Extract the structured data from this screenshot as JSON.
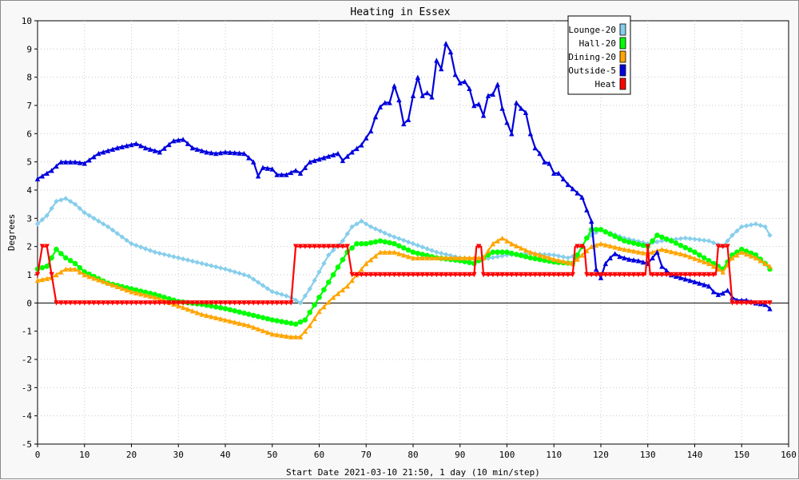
{
  "chart_data": {
    "type": "line",
    "title": "Heating in Essex",
    "xlabel": "Start Date 2021-03-10 21:50, 1 day (10 min/step)",
    "ylabel": "Degrees",
    "xlim": [
      0,
      160
    ],
    "ylim": [
      -5,
      10
    ],
    "x_ticks": [
      0,
      10,
      20,
      30,
      40,
      50,
      60,
      70,
      80,
      90,
      100,
      110,
      120,
      130,
      140,
      150,
      160
    ],
    "y_ticks": [
      -5,
      -4,
      -3,
      -2,
      -1,
      0,
      1,
      2,
      3,
      4,
      5,
      6,
      7,
      8,
      9,
      10
    ],
    "grid": true,
    "legend_position": "top-right",
    "series": [
      {
        "name": "Lounge-20",
        "color": "#87ceeb",
        "marker": "diamond",
        "anchors": [
          [
            0,
            2.8
          ],
          [
            2,
            3.1
          ],
          [
            4,
            3.6
          ],
          [
            6,
            3.7
          ],
          [
            8,
            3.5
          ],
          [
            10,
            3.2
          ],
          [
            15,
            2.7
          ],
          [
            20,
            2.1
          ],
          [
            25,
            1.8
          ],
          [
            30,
            1.6
          ],
          [
            35,
            1.4
          ],
          [
            40,
            1.2
          ],
          [
            45,
            0.95
          ],
          [
            50,
            0.4
          ],
          [
            54,
            0.2
          ],
          [
            56,
            0.0
          ],
          [
            58,
            0.5
          ],
          [
            60,
            1.1
          ],
          [
            62,
            1.7
          ],
          [
            65,
            2.2
          ],
          [
            67,
            2.7
          ],
          [
            69,
            2.9
          ],
          [
            71,
            2.7
          ],
          [
            75,
            2.4
          ],
          [
            80,
            2.1
          ],
          [
            85,
            1.8
          ],
          [
            90,
            1.6
          ],
          [
            95,
            1.55
          ],
          [
            100,
            1.7
          ],
          [
            105,
            1.75
          ],
          [
            110,
            1.7
          ],
          [
            113,
            1.6
          ],
          [
            115,
            1.7
          ],
          [
            117,
            2.3
          ],
          [
            120,
            2.6
          ],
          [
            125,
            2.3
          ],
          [
            130,
            2.1
          ],
          [
            133,
            2.2
          ],
          [
            138,
            2.3
          ],
          [
            143,
            2.2
          ],
          [
            146,
            2.0
          ],
          [
            148,
            2.4
          ],
          [
            150,
            2.7
          ],
          [
            153,
            2.8
          ],
          [
            155,
            2.7
          ],
          [
            156,
            2.4
          ]
        ]
      },
      {
        "name": "Hall-20",
        "color": "#00ff00",
        "marker": "circle",
        "anchors": [
          [
            0,
            1.2
          ],
          [
            2,
            1.3
          ],
          [
            4,
            1.9
          ],
          [
            6,
            1.6
          ],
          [
            8,
            1.4
          ],
          [
            10,
            1.1
          ],
          [
            15,
            0.7
          ],
          [
            20,
            0.5
          ],
          [
            25,
            0.3
          ],
          [
            30,
            0.05
          ],
          [
            35,
            -0.05
          ],
          [
            40,
            -0.2
          ],
          [
            45,
            -0.4
          ],
          [
            50,
            -0.6
          ],
          [
            55,
            -0.75
          ],
          [
            57,
            -0.6
          ],
          [
            60,
            0.2
          ],
          [
            63,
            1.0
          ],
          [
            66,
            1.8
          ],
          [
            68,
            2.1
          ],
          [
            70,
            2.1
          ],
          [
            73,
            2.2
          ],
          [
            76,
            2.1
          ],
          [
            80,
            1.8
          ],
          [
            85,
            1.6
          ],
          [
            90,
            1.5
          ],
          [
            93,
            1.4
          ],
          [
            95,
            1.6
          ],
          [
            97,
            1.8
          ],
          [
            100,
            1.8
          ],
          [
            105,
            1.6
          ],
          [
            110,
            1.45
          ],
          [
            114,
            1.4
          ],
          [
            116,
            2.0
          ],
          [
            118,
            2.6
          ],
          [
            120,
            2.6
          ],
          [
            125,
            2.2
          ],
          [
            130,
            2.0
          ],
          [
            132,
            2.4
          ],
          [
            135,
            2.2
          ],
          [
            140,
            1.8
          ],
          [
            144,
            1.4
          ],
          [
            146,
            1.2
          ],
          [
            148,
            1.7
          ],
          [
            150,
            1.9
          ],
          [
            153,
            1.7
          ],
          [
            155,
            1.4
          ],
          [
            156,
            1.2
          ]
        ]
      },
      {
        "name": "Dining-20",
        "color": "#ffa500",
        "marker": "triangle",
        "anchors": [
          [
            0,
            0.8
          ],
          [
            3,
            0.9
          ],
          [
            6,
            1.2
          ],
          [
            8,
            1.2
          ],
          [
            10,
            1.0
          ],
          [
            15,
            0.7
          ],
          [
            20,
            0.4
          ],
          [
            25,
            0.2
          ],
          [
            30,
            -0.1
          ],
          [
            35,
            -0.4
          ],
          [
            40,
            -0.6
          ],
          [
            45,
            -0.8
          ],
          [
            50,
            -1.1
          ],
          [
            54,
            -1.2
          ],
          [
            56,
            -1.2
          ],
          [
            58,
            -0.8
          ],
          [
            60,
            -0.3
          ],
          [
            63,
            0.2
          ],
          [
            66,
            0.6
          ],
          [
            70,
            1.4
          ],
          [
            73,
            1.8
          ],
          [
            76,
            1.8
          ],
          [
            80,
            1.6
          ],
          [
            85,
            1.6
          ],
          [
            90,
            1.6
          ],
          [
            95,
            1.6
          ],
          [
            97,
            2.1
          ],
          [
            99,
            2.3
          ],
          [
            101,
            2.1
          ],
          [
            105,
            1.8
          ],
          [
            110,
            1.55
          ],
          [
            114,
            1.4
          ],
          [
            116,
            1.7
          ],
          [
            118,
            2.0
          ],
          [
            120,
            2.1
          ],
          [
            125,
            1.9
          ],
          [
            130,
            1.75
          ],
          [
            133,
            1.9
          ],
          [
            138,
            1.7
          ],
          [
            143,
            1.4
          ],
          [
            146,
            1.1
          ],
          [
            148,
            1.6
          ],
          [
            150,
            1.8
          ],
          [
            153,
            1.6
          ],
          [
            156,
            1.3
          ]
        ]
      },
      {
        "name": "Outside-5",
        "color": "#0000dd",
        "marker": "triangle",
        "anchors": [
          [
            0,
            4.4
          ],
          [
            3,
            4.7
          ],
          [
            5,
            5.0
          ],
          [
            8,
            5.0
          ],
          [
            10,
            4.95
          ],
          [
            13,
            5.3
          ],
          [
            17,
            5.5
          ],
          [
            21,
            5.65
          ],
          [
            23,
            5.5
          ],
          [
            26,
            5.35
          ],
          [
            29,
            5.75
          ],
          [
            31,
            5.8
          ],
          [
            33,
            5.5
          ],
          [
            36,
            5.35
          ],
          [
            38,
            5.3
          ],
          [
            40,
            5.35
          ],
          [
            44,
            5.3
          ],
          [
            46,
            5.0
          ],
          [
            47,
            4.5
          ],
          [
            48,
            4.8
          ],
          [
            50,
            4.75
          ],
          [
            51,
            4.55
          ],
          [
            53,
            4.55
          ],
          [
            55,
            4.7
          ],
          [
            56,
            4.6
          ],
          [
            58,
            5.0
          ],
          [
            62,
            5.2
          ],
          [
            64,
            5.3
          ],
          [
            65,
            5.05
          ],
          [
            67,
            5.35
          ],
          [
            69,
            5.6
          ],
          [
            71,
            6.1
          ],
          [
            72,
            6.6
          ],
          [
            73,
            6.95
          ],
          [
            74,
            7.1
          ],
          [
            75,
            7.1
          ],
          [
            76,
            7.7
          ],
          [
            77,
            7.2
          ],
          [
            78,
            6.35
          ],
          [
            79,
            6.5
          ],
          [
            80,
            7.35
          ],
          [
            81,
            8.0
          ],
          [
            82,
            7.35
          ],
          [
            83,
            7.45
          ],
          [
            84,
            7.3
          ],
          [
            85,
            8.6
          ],
          [
            86,
            8.3
          ],
          [
            87,
            9.2
          ],
          [
            88,
            8.9
          ],
          [
            89,
            8.1
          ],
          [
            90,
            7.8
          ],
          [
            91,
            7.85
          ],
          [
            92,
            7.6
          ],
          [
            93,
            7.0
          ],
          [
            94,
            7.05
          ],
          [
            95,
            6.65
          ],
          [
            96,
            7.35
          ],
          [
            97,
            7.4
          ],
          [
            98,
            7.75
          ],
          [
            99,
            6.9
          ],
          [
            100,
            6.4
          ],
          [
            101,
            6.0
          ],
          [
            102,
            7.1
          ],
          [
            103,
            6.9
          ],
          [
            104,
            6.75
          ],
          [
            105,
            6.0
          ],
          [
            106,
            5.5
          ],
          [
            107,
            5.3
          ],
          [
            108,
            5.0
          ],
          [
            109,
            4.95
          ],
          [
            110,
            4.6
          ],
          [
            111,
            4.6
          ],
          [
            112,
            4.4
          ],
          [
            113,
            4.2
          ],
          [
            114,
            4.05
          ],
          [
            115,
            3.9
          ],
          [
            116,
            3.75
          ],
          [
            117,
            3.3
          ],
          [
            118,
            2.9
          ],
          [
            119,
            1.2
          ],
          [
            120,
            0.9
          ],
          [
            121,
            1.4
          ],
          [
            122,
            1.6
          ],
          [
            123,
            1.75
          ],
          [
            124,
            1.65
          ],
          [
            126,
            1.55
          ],
          [
            128,
            1.5
          ],
          [
            130,
            1.4
          ],
          [
            131,
            1.6
          ],
          [
            132,
            1.8
          ],
          [
            133,
            1.3
          ],
          [
            135,
            1.0
          ],
          [
            138,
            0.85
          ],
          [
            141,
            0.7
          ],
          [
            143,
            0.6
          ],
          [
            144,
            0.4
          ],
          [
            145,
            0.3
          ],
          [
            146,
            0.35
          ],
          [
            147,
            0.45
          ],
          [
            148,
            0.2
          ],
          [
            149,
            0.1
          ],
          [
            151,
            0.1
          ],
          [
            153,
            0.0
          ],
          [
            155,
            -0.05
          ],
          [
            156,
            -0.2
          ]
        ]
      },
      {
        "name": "Heat",
        "color": "#ff0000",
        "marker": "triangle-down",
        "anchors": [
          [
            0,
            1.0
          ],
          [
            1,
            2.0
          ],
          [
            2,
            2.0
          ],
          [
            3,
            1.0
          ],
          [
            4,
            0.0
          ],
          [
            54,
            0.0
          ],
          [
            55,
            2.0
          ],
          [
            66,
            2.0
          ],
          [
            67,
            1.0
          ],
          [
            93,
            1.0
          ],
          [
            93.5,
            2.0
          ],
          [
            94.5,
            2.0
          ],
          [
            95,
            1.0
          ],
          [
            114,
            1.0
          ],
          [
            114.5,
            2.0
          ],
          [
            116.5,
            2.0
          ],
          [
            117,
            1.0
          ],
          [
            129.5,
            1.0
          ],
          [
            130,
            2.0
          ],
          [
            130.5,
            1.0
          ],
          [
            144.5,
            1.0
          ],
          [
            145,
            2.0
          ],
          [
            147,
            2.0
          ],
          [
            148,
            0.0
          ],
          [
            156,
            0.0
          ]
        ]
      }
    ]
  }
}
